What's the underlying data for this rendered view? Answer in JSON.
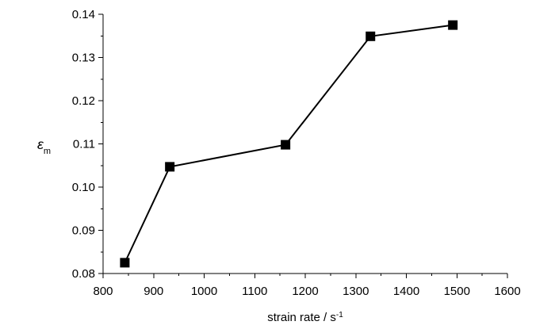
{
  "chart_data": {
    "type": "line",
    "title": "",
    "xlabel": {
      "text": "strain rate / s",
      "sup": "-1"
    },
    "ylabel": {
      "symbol": "ε",
      "sub": "m"
    },
    "xlim": [
      800,
      1600
    ],
    "ylim": [
      0.08,
      0.14
    ],
    "xticks": [
      800,
      900,
      1000,
      1100,
      1200,
      1300,
      1400,
      1500,
      1600
    ],
    "xtick_labels": [
      "800",
      "900",
      "1000",
      "1100",
      "1200",
      "1300",
      "1400",
      "1500",
      "1600"
    ],
    "yticks": [
      0.08,
      0.09,
      0.1,
      0.11,
      0.12,
      0.13,
      0.14
    ],
    "ytick_labels": [
      "0.08",
      "0.09",
      "0.10",
      "0.11",
      "0.12",
      "0.13",
      "0.14"
    ],
    "grid": false,
    "legend": "none",
    "marker": "square",
    "color": "#000000",
    "series": [
      {
        "x": [
          843,
          932,
          1161,
          1329,
          1492
        ],
        "y": [
          0.0825,
          0.1047,
          0.1098,
          0.1349,
          0.1375
        ]
      }
    ]
  }
}
